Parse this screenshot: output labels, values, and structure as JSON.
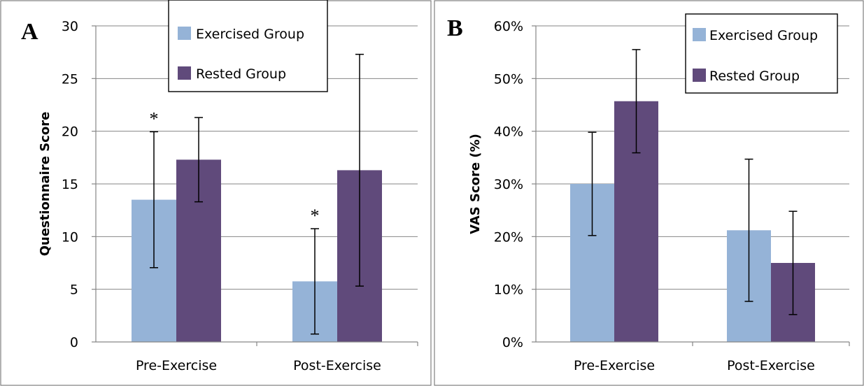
{
  "colors": {
    "exercised": "#95b3d7",
    "rested": "#604a7b"
  },
  "chart_data": [
    {
      "type": "bar",
      "panel_label": "A",
      "categories": [
        "Pre-Exercise",
        "Post-Exercise"
      ],
      "series": [
        {
          "name": "Exercised Group",
          "values": [
            13.5,
            5.75
          ],
          "error": [
            6.45,
            5.0
          ]
        },
        {
          "name": "Rested Group",
          "values": [
            17.3,
            16.3
          ],
          "error": [
            4.0,
            11.0
          ]
        }
      ],
      "ylabel": "Questionnaire Score",
      "xlabel": "",
      "ylim": [
        0,
        30
      ],
      "yticks": [
        0,
        5,
        10,
        15,
        20,
        25,
        30
      ],
      "ytick_labels": [
        "0",
        "5",
        "10",
        "15",
        "20",
        "25",
        "30"
      ],
      "annotations": [
        "*",
        "*"
      ],
      "legend": "top-right",
      "grid": true
    },
    {
      "type": "bar",
      "panel_label": "B",
      "categories": [
        "Pre-Exercise",
        "Post-Exercise"
      ],
      "series": [
        {
          "name": "Exercised Group",
          "values": [
            0.3,
            0.212
          ],
          "error": [
            0.098,
            0.135
          ]
        },
        {
          "name": "Rested Group",
          "values": [
            0.457,
            0.15
          ],
          "error": [
            0.098,
            0.098
          ]
        }
      ],
      "ylabel": "VAS Score (%)",
      "xlabel": "",
      "ylim": [
        0,
        0.6
      ],
      "yticks": [
        0,
        0.1,
        0.2,
        0.3,
        0.4,
        0.5,
        0.6
      ],
      "ytick_labels": [
        "0%",
        "10%",
        "20%",
        "30%",
        "40%",
        "50%",
        "60%"
      ],
      "annotations": [],
      "legend": "top-right",
      "grid": true
    }
  ]
}
